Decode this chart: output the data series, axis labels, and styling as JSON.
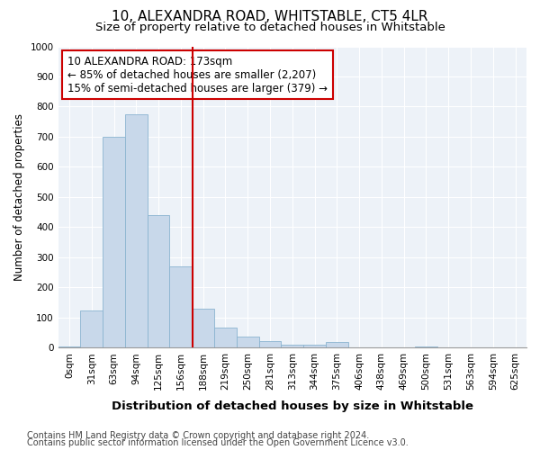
{
  "title": "10, ALEXANDRA ROAD, WHITSTABLE, CT5 4LR",
  "subtitle": "Size of property relative to detached houses in Whitstable",
  "xlabel": "Distribution of detached houses by size in Whitstable",
  "ylabel": "Number of detached properties",
  "bar_labels": [
    "0sqm",
    "31sqm",
    "63sqm",
    "94sqm",
    "125sqm",
    "156sqm",
    "188sqm",
    "219sqm",
    "250sqm",
    "281sqm",
    "313sqm",
    "344sqm",
    "375sqm",
    "406sqm",
    "438sqm",
    "469sqm",
    "500sqm",
    "531sqm",
    "563sqm",
    "594sqm",
    "625sqm"
  ],
  "bar_values": [
    5,
    125,
    700,
    775,
    440,
    270,
    130,
    68,
    38,
    22,
    10,
    10,
    20,
    0,
    0,
    0,
    5,
    0,
    0,
    0,
    0
  ],
  "bar_color": "#c8d8ea",
  "bar_edge_color": "#8ab4d0",
  "bar_width": 1.0,
  "vline_x": 5.53,
  "vline_color": "#cc0000",
  "annotation_text": "10 ALEXANDRA ROAD: 173sqm\n← 85% of detached houses are smaller (2,207)\n15% of semi-detached houses are larger (379) →",
  "annotation_box_color": "#ffffff",
  "annotation_box_edge": "#cc0000",
  "ylim": [
    0,
    1000
  ],
  "yticks": [
    0,
    100,
    200,
    300,
    400,
    500,
    600,
    700,
    800,
    900,
    1000
  ],
  "footer1": "Contains HM Land Registry data © Crown copyright and database right 2024.",
  "footer2": "Contains public sector information licensed under the Open Government Licence v3.0.",
  "bg_color": "#edf2f8",
  "grid_color": "#ffffff",
  "fig_bg_color": "#ffffff",
  "title_fontsize": 11,
  "subtitle_fontsize": 9.5,
  "xlabel_fontsize": 9.5,
  "ylabel_fontsize": 8.5,
  "tick_fontsize": 7.5,
  "annotation_fontsize": 8.5,
  "footer_fontsize": 7
}
